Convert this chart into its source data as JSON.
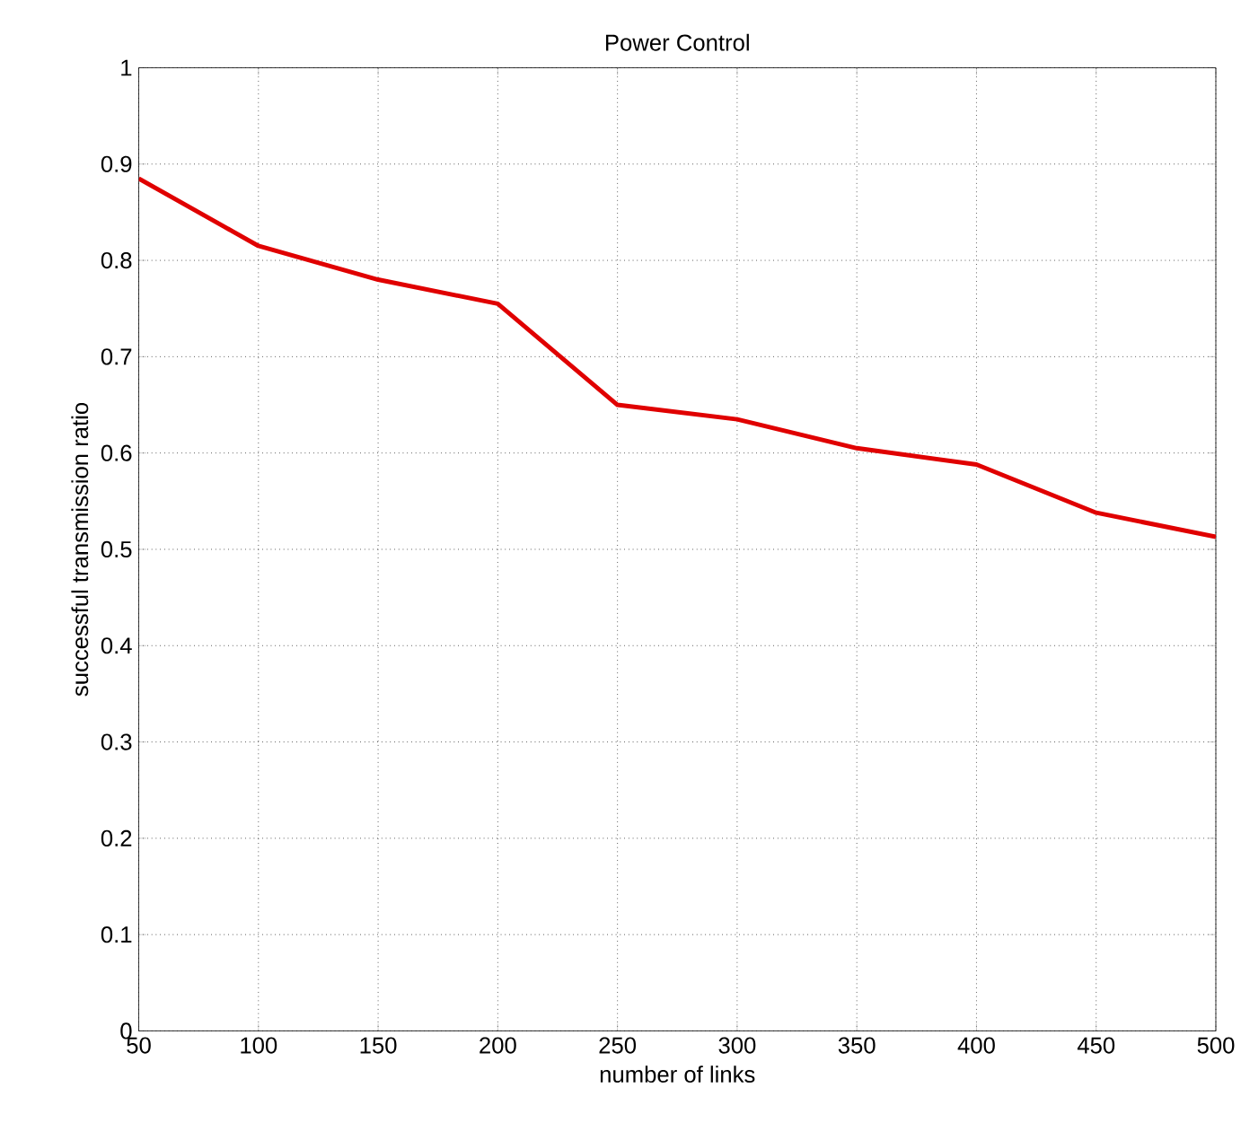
{
  "chart_data": {
    "type": "line",
    "title": "Power Control",
    "xlabel": "number of links",
    "ylabel": "successful transmission ratio",
    "x": [
      50,
      100,
      150,
      200,
      250,
      300,
      350,
      400,
      450,
      500
    ],
    "series": [
      {
        "color": "#e00000",
        "values": [
          0.885,
          0.815,
          0.78,
          0.755,
          0.65,
          0.635,
          0.605,
          0.588,
          0.538,
          0.513
        ]
      }
    ],
    "xlim": [
      50,
      500
    ],
    "ylim": [
      0,
      1
    ],
    "xticks": [
      50,
      100,
      150,
      200,
      250,
      300,
      350,
      400,
      450,
      500
    ],
    "yticks": [
      0,
      0.1,
      0.2,
      0.3,
      0.4,
      0.5,
      0.6,
      0.7,
      0.8,
      0.9,
      1
    ],
    "grid": true
  }
}
